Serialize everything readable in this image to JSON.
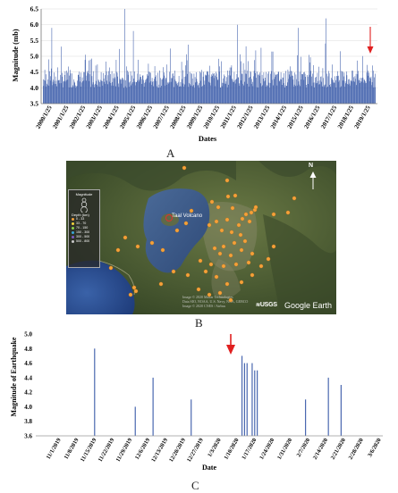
{
  "figure": {
    "panel_labels": [
      "A",
      "B",
      "C"
    ]
  },
  "chart_data": [
    {
      "type": "bar",
      "panel": "A",
      "ylabel": "Magnitude (mb)",
      "xlabel": "Dates",
      "ylim": [
        3.5,
        6.5
      ],
      "yticks": [
        "3.5",
        "4.0",
        "4.5",
        "5.0",
        "5.5",
        "6.0",
        "6.5"
      ],
      "xtick_labels": [
        "2000/1/25",
        "2001/1/25",
        "2002/1/25",
        "2003/1/25",
        "2004/1/25",
        "2005/1/25",
        "2006/1/25",
        "2007/1/25",
        "2008/1/25",
        "2009/1/25",
        "2010/1/25",
        "2011/1/25",
        "2012/1/25",
        "2013/1/25",
        "2014/1/25",
        "2015/1/25",
        "2016/1/25",
        "2017/1/25",
        "2018/1/25",
        "2019/1/25"
      ],
      "bar_color": "#4a68b0",
      "approx_event_count": 620,
      "peaks": [
        {
          "date": "2000/7",
          "value": 5.9
        },
        {
          "date": "2004/12",
          "value": 6.5
        },
        {
          "date": "2005/6",
          "value": 5.8
        },
        {
          "date": "2011/9",
          "value": 6.0
        },
        {
          "date": "2015/5",
          "value": 5.9
        },
        {
          "date": "2017/1",
          "value": 6.2
        }
      ],
      "marker": {
        "symbol": "arrow-down",
        "color": "#e02020",
        "position": "end of 2019"
      }
    },
    {
      "type": "bar",
      "panel": "C",
      "ylabel": "Magnitude of Earthquake",
      "xlabel": "Date",
      "ylim": [
        3.6,
        5.0
      ],
      "yticks": [
        "3.6",
        "3.8",
        "4.0",
        "4.2",
        "4.4",
        "4.6",
        "4.8",
        "5.0"
      ],
      "xtick_labels": [
        "11/1/2019",
        "11/8/2019",
        "11/15/2019",
        "11/22/2019",
        "11/29/2019",
        "12/6/2019",
        "12/13/2019",
        "12/20/2019",
        "12/27/2019",
        "1/3/2020",
        "1/10/2020",
        "1/17/2020",
        "1/24/2020",
        "1/31/2020",
        "2/7/2020",
        "2/14/2020",
        "2/21/2020",
        "2/28/2020",
        "3/6/2020"
      ],
      "bar_color": "#4a68b0",
      "points": [
        {
          "date": "11/15/2019",
          "value": 4.8
        },
        {
          "date": "12/1/2019",
          "value": 4.0
        },
        {
          "date": "12/8/2019",
          "value": 4.4
        },
        {
          "date": "12/23/2019",
          "value": 4.1
        },
        {
          "date": "1/12/2020",
          "value": 4.7
        },
        {
          "date": "1/13/2020",
          "value": 4.6
        },
        {
          "date": "1/14/2020",
          "value": 4.6
        },
        {
          "date": "1/16/2020",
          "value": 4.6
        },
        {
          "date": "1/17/2020",
          "value": 4.5
        },
        {
          "date": "1/18/2020",
          "value": 4.5
        },
        {
          "date": "2/6/2020",
          "value": 4.1
        },
        {
          "date": "2/15/2020",
          "value": 4.4
        },
        {
          "date": "2/20/2020",
          "value": 4.3
        }
      ],
      "marker": {
        "symbol": "arrow-down",
        "color": "#e02020",
        "date": "1/12/2020"
      }
    }
  ],
  "map": {
    "volcano_label": "Taal Volcano",
    "north_label": "N",
    "logo_text": "Google Earth",
    "agency_text": "USGS",
    "legend": {
      "title": "Magnitude",
      "depth_title": "Depth (km)",
      "entries": [
        "0 - 33",
        "33 - 70",
        "70 - 150",
        "150 - 300",
        "300 - 500",
        "500 - 800"
      ],
      "colors": [
        "#f4a13a",
        "#f2d43c",
        "#8bd24a",
        "#3aa6d8",
        "#7c5bc4",
        "#c8c8c8"
      ]
    },
    "events_color": "#f4a13a"
  }
}
